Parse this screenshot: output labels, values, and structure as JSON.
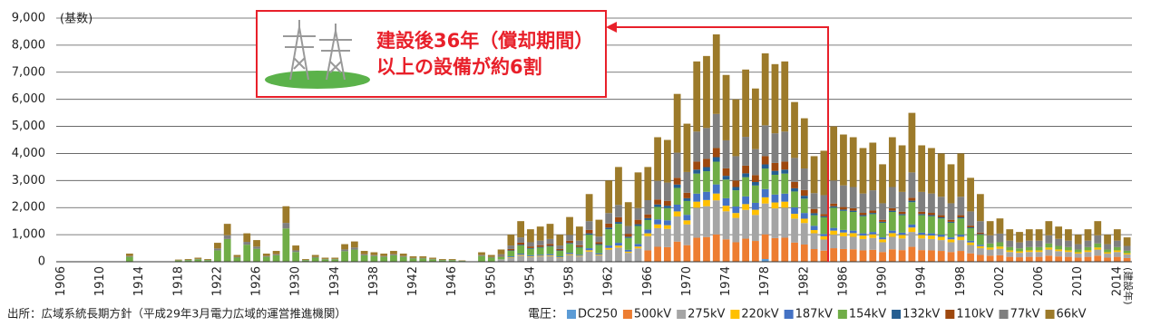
{
  "chart_data": {
    "type": "stacked-bar",
    "y_unit_label": "(基数)",
    "x_unit_label": "(建設年)",
    "annotation": [
      "建設後36年（償却期間）",
      "以上の設備が約6割"
    ],
    "source": "出所：広域系統長期方針（平成29年3月電力広域的運営推進機関）",
    "legend_title": "電圧：",
    "ylim": [
      0,
      9000
    ],
    "yticks": [
      0,
      {
        "value": 1000,
        "label": "1,000"
      },
      {
        "value": 2000,
        "label": "2,000"
      },
      {
        "value": 3000,
        "label": "3,000"
      },
      {
        "value": 4000,
        "label": "4,000"
      },
      {
        "value": 5000,
        "label": "5,000"
      },
      {
        "value": 6000,
        "label": "6,000"
      },
      {
        "value": 7000,
        "label": "7,000"
      },
      {
        "value": 8000,
        "label": "8,000"
      },
      {
        "value": 9000,
        "label": "9,000"
      }
    ],
    "grid": true,
    "categories": [
      "1906",
      null,
      null,
      null,
      "1910",
      null,
      null,
      null,
      "1914",
      null,
      null,
      null,
      "1918",
      null,
      null,
      null,
      "1922",
      null,
      null,
      null,
      "1926",
      null,
      null,
      null,
      "1930",
      null,
      null,
      null,
      "1934",
      null,
      null,
      null,
      "1938",
      null,
      null,
      null,
      "1942",
      null,
      null,
      null,
      "1946",
      null,
      null,
      null,
      "1950",
      null,
      null,
      null,
      "1954",
      null,
      null,
      null,
      "1958",
      null,
      null,
      null,
      "1962",
      null,
      null,
      null,
      "1966",
      null,
      null,
      null,
      "1970",
      null,
      null,
      null,
      "1974",
      null,
      null,
      null,
      "1978",
      null,
      null,
      null,
      "1982",
      null,
      null,
      null,
      "1986",
      null,
      null,
      null,
      "1990",
      null,
      null,
      null,
      "1994",
      null,
      null,
      null,
      "1998",
      null,
      null,
      null,
      "2002",
      null,
      null,
      null,
      "2006",
      null,
      null,
      null,
      "2010",
      null,
      null,
      null,
      "2014",
      null
    ],
    "series": [
      {
        "name": "DC250",
        "color": "#5b9bd5",
        "values": [
          0,
          0,
          0,
          0,
          0,
          0,
          0,
          0,
          0,
          0,
          0,
          0,
          0,
          0,
          0,
          0,
          0,
          0,
          0,
          0,
          0,
          0,
          0,
          0,
          0,
          0,
          0,
          0,
          0,
          0,
          0,
          0,
          0,
          0,
          0,
          0,
          0,
          0,
          0,
          0,
          0,
          0,
          0,
          0,
          0,
          0,
          0,
          0,
          0,
          0,
          0,
          0,
          0,
          0,
          0,
          0,
          0,
          0,
          0,
          0,
          0,
          0,
          0,
          0,
          0,
          0,
          0,
          0,
          0,
          0,
          0,
          0,
          100,
          0,
          0,
          0,
          0,
          0,
          0,
          0,
          0,
          0,
          0,
          0,
          0,
          0,
          0,
          0,
          0,
          0,
          0,
          0,
          0,
          0,
          0,
          0,
          0,
          0,
          0,
          0,
          0,
          0,
          0,
          0,
          0,
          0,
          0,
          0,
          0,
          0
        ]
      },
      {
        "name": "500kV",
        "color": "#ed7d31",
        "values": [
          0,
          0,
          0,
          0,
          0,
          0,
          0,
          0,
          0,
          0,
          0,
          0,
          0,
          0,
          0,
          0,
          0,
          0,
          0,
          0,
          0,
          0,
          0,
          0,
          0,
          0,
          0,
          0,
          0,
          0,
          0,
          0,
          0,
          0,
          0,
          0,
          0,
          0,
          0,
          0,
          0,
          0,
          0,
          0,
          0,
          0,
          0,
          0,
          0,
          0,
          0,
          0,
          0,
          0,
          0,
          0,
          0,
          0,
          0,
          0,
          420,
          552,
          540,
          744,
          612,
          888,
          912,
          1008,
          828,
          720,
          852,
          768,
          912,
          876,
          888,
          708,
          636,
          468,
          410,
          500,
          470,
          460,
          420,
          440,
          360,
          460,
          430,
          550,
          430,
          420,
          400,
          360,
          400,
          310,
          250,
          225,
          240,
          180,
          165,
          180,
          180,
          225,
          195,
          180,
          150,
          180,
          225,
          150,
          180,
          135
        ]
      },
      {
        "name": "275kV",
        "color": "#a5a5a5",
        "values": [
          0,
          0,
          0,
          0,
          0,
          0,
          0,
          0,
          0,
          0,
          0,
          0,
          0,
          0,
          0,
          0,
          0,
          0,
          0,
          0,
          0,
          0,
          0,
          0,
          0,
          0,
          0,
          0,
          0,
          0,
          0,
          0,
          0,
          0,
          0,
          0,
          0,
          0,
          0,
          0,
          0,
          0,
          0,
          0,
          0,
          68,
          150,
          225,
          180,
          195,
          210,
          150,
          248,
          195,
          375,
          233,
          450,
          525,
          330,
          495,
          525,
          690,
          675,
          930,
          765,
          1110,
          1140,
          1260,
          1035,
          900,
          1065,
          960,
          1140,
          1095,
          1110,
          885,
          795,
          585,
          410,
          500,
          470,
          460,
          420,
          440,
          360,
          460,
          430,
          550,
          430,
          420,
          400,
          360,
          400,
          310,
          250,
          225,
          240,
          180,
          165,
          180,
          180,
          225,
          195,
          180,
          150,
          180,
          225,
          150,
          180,
          135
        ]
      },
      {
        "name": "220kV",
        "color": "#ffc000",
        "values": [
          0,
          0,
          0,
          0,
          0,
          0,
          0,
          0,
          0,
          0,
          0,
          0,
          0,
          0,
          0,
          0,
          0,
          0,
          0,
          0,
          0,
          0,
          0,
          0,
          0,
          0,
          0,
          0,
          0,
          0,
          0,
          0,
          0,
          0,
          0,
          0,
          0,
          0,
          0,
          0,
          0,
          0,
          0,
          0,
          0,
          9,
          20,
          30,
          24,
          26,
          28,
          20,
          33,
          26,
          50,
          31,
          60,
          70,
          44,
          66,
          105,
          138,
          135,
          186,
          153,
          222,
          228,
          252,
          207,
          180,
          213,
          192,
          228,
          219,
          222,
          177,
          159,
          117,
          123,
          150,
          141,
          138,
          126,
          132,
          108,
          138,
          129,
          165,
          129,
          126,
          120,
          108,
          120,
          93,
          75,
          75,
          80,
          60,
          55,
          60,
          60,
          75,
          65,
          60,
          50,
          60,
          75,
          50,
          60,
          45
        ]
      },
      {
        "name": "187kV",
        "color": "#4472c4",
        "values": [
          0,
          0,
          0,
          0,
          0,
          0,
          0,
          0,
          0,
          0,
          0,
          0,
          0,
          0,
          0,
          0,
          0,
          0,
          0,
          0,
          0,
          0,
          0,
          0,
          0,
          0,
          0,
          0,
          0,
          0,
          0,
          0,
          0,
          0,
          0,
          0,
          0,
          0,
          0,
          0,
          0,
          0,
          0,
          0,
          0,
          14,
          30,
          45,
          36,
          39,
          42,
          30,
          50,
          39,
          75,
          47,
          90,
          105,
          66,
          99,
          140,
          184,
          180,
          248,
          204,
          296,
          304,
          336,
          276,
          240,
          284,
          256,
          304,
          292,
          296,
          236,
          212,
          156,
          82,
          100,
          94,
          92,
          84,
          88,
          72,
          92,
          86,
          110,
          86,
          84,
          80,
          72,
          80,
          62,
          50,
          0,
          0,
          0,
          0,
          0,
          0,
          0,
          0,
          0,
          0,
          0,
          0,
          0,
          0,
          0
        ]
      },
      {
        "name": "154kV",
        "color": "#70ad47",
        "values": [
          0,
          0,
          0,
          0,
          0,
          0,
          0,
          180,
          0,
          0,
          0,
          0,
          48,
          60,
          90,
          60,
          420,
          840,
          150,
          630,
          480,
          180,
          240,
          1230,
          360,
          60,
          150,
          90,
          90,
          390,
          450,
          240,
          210,
          180,
          240,
          180,
          120,
          120,
          90,
          60,
          60,
          30,
          0,
          210,
          150,
          90,
          200,
          300,
          240,
          260,
          280,
          200,
          330,
          260,
          500,
          310,
          600,
          700,
          440,
          660,
          350,
          460,
          450,
          620,
          510,
          740,
          760,
          840,
          690,
          600,
          710,
          640,
          760,
          730,
          740,
          590,
          530,
          390,
          615,
          750,
          705,
          690,
          630,
          660,
          540,
          690,
          645,
          825,
          645,
          630,
          600,
          540,
          600,
          465,
          375,
          150,
          160,
          120,
          110,
          120,
          120,
          150,
          130,
          120,
          100,
          120,
          150,
          100,
          120,
          90
        ]
      },
      {
        "name": "132kV",
        "color": "#255e91",
        "values": [
          0,
          0,
          0,
          0,
          0,
          0,
          0,
          0,
          0,
          0,
          0,
          0,
          0,
          0,
          0,
          0,
          0,
          0,
          0,
          0,
          0,
          0,
          0,
          0,
          0,
          0,
          0,
          0,
          0,
          0,
          0,
          0,
          0,
          0,
          0,
          0,
          0,
          0,
          0,
          0,
          0,
          0,
          0,
          0,
          0,
          9,
          20,
          30,
          24,
          26,
          28,
          20,
          33,
          26,
          50,
          31,
          60,
          70,
          44,
          66,
          70,
          92,
          90,
          124,
          102,
          148,
          152,
          168,
          138,
          120,
          142,
          128,
          152,
          146,
          148,
          118,
          106,
          78,
          41,
          50,
          47,
          46,
          42,
          44,
          36,
          46,
          43,
          55,
          43,
          42,
          40,
          36,
          40,
          31,
          25,
          0,
          0,
          0,
          0,
          0,
          0,
          0,
          0,
          0,
          0,
          0,
          0,
          0,
          0,
          0
        ]
      },
      {
        "name": "110kV",
        "color": "#9e480e",
        "values": [
          0,
          0,
          0,
          0,
          0,
          0,
          0,
          0,
          0,
          0,
          0,
          0,
          0,
          0,
          0,
          0,
          0,
          0,
          0,
          0,
          0,
          0,
          0,
          0,
          0,
          0,
          0,
          0,
          0,
          0,
          0,
          0,
          0,
          0,
          0,
          0,
          0,
          0,
          0,
          0,
          0,
          0,
          0,
          0,
          0,
          23,
          50,
          75,
          60,
          65,
          70,
          50,
          83,
          65,
          125,
          78,
          150,
          175,
          110,
          165,
          140,
          184,
          180,
          248,
          204,
          296,
          304,
          336,
          276,
          240,
          284,
          256,
          304,
          292,
          296,
          236,
          212,
          156,
          82,
          100,
          94,
          92,
          84,
          88,
          72,
          92,
          86,
          110,
          86,
          84,
          80,
          72,
          80,
          62,
          50,
          0,
          0,
          0,
          0,
          0,
          0,
          0,
          0,
          0,
          0,
          0,
          0,
          0,
          0,
          0
        ]
      },
      {
        "name": "77kV",
        "color": "#7f7f7f",
        "values": [
          0,
          0,
          0,
          0,
          0,
          0,
          0,
          30,
          0,
          0,
          0,
          0,
          8,
          10,
          15,
          10,
          70,
          140,
          25,
          105,
          80,
          30,
          40,
          205,
          60,
          10,
          25,
          15,
          15,
          65,
          75,
          40,
          35,
          30,
          40,
          30,
          20,
          20,
          15,
          10,
          10,
          5,
          0,
          35,
          25,
          59,
          130,
          195,
          156,
          169,
          182,
          130,
          215,
          169,
          325,
          202,
          390,
          455,
          286,
          429,
          525,
          690,
          675,
          930,
          765,
          1110,
          1140,
          1260,
          1035,
          900,
          1065,
          960,
          1140,
          1095,
          1110,
          885,
          795,
          585,
          697,
          850,
          799,
          782,
          714,
          748,
          612,
          782,
          731,
          935,
          731,
          714,
          680,
          612,
          680,
          527,
          425,
          300,
          320,
          240,
          220,
          240,
          240,
          300,
          260,
          240,
          200,
          240,
          300,
          200,
          240,
          180
        ]
      },
      {
        "name": "66kV",
        "color": "#9c7a2a",
        "values": [
          0,
          0,
          0,
          0,
          0,
          0,
          0,
          90,
          0,
          0,
          0,
          0,
          24,
          30,
          45,
          30,
          210,
          420,
          75,
          315,
          240,
          90,
          120,
          615,
          180,
          30,
          75,
          45,
          45,
          195,
          225,
          120,
          105,
          90,
          120,
          90,
          60,
          60,
          45,
          30,
          30,
          15,
          0,
          105,
          75,
          180,
          400,
          600,
          480,
          520,
          560,
          400,
          660,
          520,
          1000,
          620,
          1200,
          1400,
          880,
          1320,
          1225,
          1610,
          1575,
          2170,
          1785,
          2590,
          2660,
          2940,
          2415,
          2100,
          2485,
          2240,
          2660,
          2555,
          2590,
          2065,
          1855,
          1365,
          1640,
          2000,
          1880,
          1840,
          1680,
          1760,
          1440,
          1840,
          1720,
          2200,
          1720,
          1680,
          1600,
          1440,
          1600,
          1240,
          1000,
          525,
          560,
          420,
          385,
          420,
          420,
          525,
          455,
          420,
          350,
          420,
          525,
          350,
          420,
          315
        ]
      }
    ]
  }
}
